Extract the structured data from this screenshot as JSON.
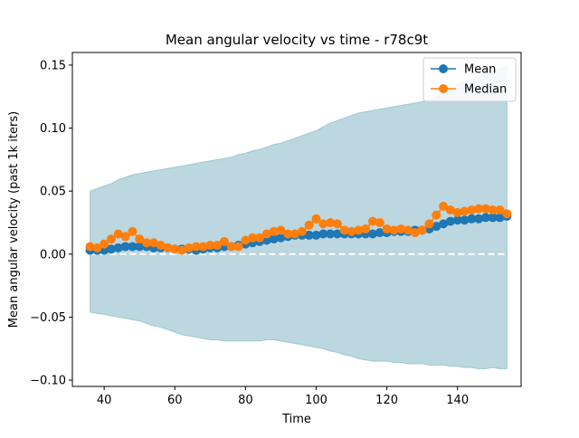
{
  "chart_data": {
    "type": "line",
    "title": "Mean angular velocity vs time - r78c9t",
    "xlabel": "Time",
    "ylabel": "Mean angular velocity (past 1k iters)",
    "xlim": [
      31,
      158
    ],
    "ylim": [
      -0.105,
      0.16
    ],
    "x_ticks": [
      40,
      60,
      80,
      100,
      120,
      140
    ],
    "y_ticks": [
      -0.1,
      -0.05,
      0.0,
      0.05,
      0.1,
      0.15
    ],
    "x_tick_labels": [
      "40",
      "60",
      "80",
      "100",
      "120",
      "140"
    ],
    "y_tick_labels": [
      "−0.10",
      "−0.05",
      "0.00",
      "0.05",
      "0.10",
      "0.15"
    ],
    "grid": false,
    "legend_position": "top-right",
    "reference_line": {
      "y": 0.0,
      "style": "dashed",
      "color": "#ffffff"
    },
    "band": {
      "color": "#7fb2c3",
      "x": [
        36,
        38,
        40,
        42,
        44,
        46,
        48,
        50,
        52,
        54,
        56,
        58,
        60,
        62,
        64,
        66,
        68,
        70,
        72,
        74,
        76,
        78,
        80,
        82,
        84,
        86,
        88,
        90,
        92,
        94,
        96,
        98,
        100,
        102,
        104,
        106,
        108,
        110,
        112,
        114,
        116,
        118,
        120,
        122,
        124,
        126,
        128,
        130,
        132,
        134,
        136,
        138,
        140,
        142,
        144,
        146,
        148,
        150,
        152,
        154
      ],
      "upper": [
        0.05,
        0.052,
        0.054,
        0.056,
        0.059,
        0.061,
        0.063,
        0.064,
        0.065,
        0.066,
        0.067,
        0.068,
        0.069,
        0.07,
        0.071,
        0.072,
        0.073,
        0.074,
        0.075,
        0.076,
        0.077,
        0.079,
        0.08,
        0.082,
        0.083,
        0.085,
        0.087,
        0.088,
        0.09,
        0.092,
        0.094,
        0.096,
        0.098,
        0.101,
        0.104,
        0.106,
        0.108,
        0.11,
        0.112,
        0.113,
        0.114,
        0.115,
        0.116,
        0.117,
        0.118,
        0.119,
        0.12,
        0.121,
        0.123,
        0.125,
        0.128,
        0.132,
        0.135,
        0.137,
        0.139,
        0.141,
        0.143,
        0.145,
        0.147,
        0.149
      ],
      "lower": [
        -0.046,
        -0.047,
        -0.048,
        -0.049,
        -0.05,
        -0.051,
        -0.052,
        -0.053,
        -0.055,
        -0.057,
        -0.058,
        -0.06,
        -0.062,
        -0.064,
        -0.065,
        -0.066,
        -0.067,
        -0.068,
        -0.068,
        -0.069,
        -0.069,
        -0.069,
        -0.069,
        -0.069,
        -0.069,
        -0.068,
        -0.068,
        -0.069,
        -0.07,
        -0.071,
        -0.072,
        -0.073,
        -0.074,
        -0.075,
        -0.077,
        -0.078,
        -0.08,
        -0.081,
        -0.083,
        -0.084,
        -0.085,
        -0.085,
        -0.085,
        -0.086,
        -0.086,
        -0.087,
        -0.087,
        -0.087,
        -0.088,
        -0.088,
        -0.088,
        -0.089,
        -0.089,
        -0.09,
        -0.09,
        -0.091,
        -0.091,
        -0.09,
        -0.091,
        -0.091
      ]
    },
    "x": [
      36,
      38,
      40,
      42,
      44,
      46,
      48,
      50,
      52,
      54,
      56,
      58,
      60,
      62,
      64,
      66,
      68,
      70,
      72,
      74,
      76,
      78,
      80,
      82,
      84,
      86,
      88,
      90,
      92,
      94,
      96,
      98,
      100,
      102,
      104,
      106,
      108,
      110,
      112,
      114,
      116,
      118,
      120,
      122,
      124,
      126,
      128,
      130,
      132,
      134,
      136,
      138,
      140,
      142,
      144,
      146,
      148,
      150,
      152,
      154
    ],
    "series": [
      {
        "name": "Mean",
        "color": "#1f77b4",
        "values": [
          0.003,
          0.003,
          0.003,
          0.004,
          0.005,
          0.006,
          0.006,
          0.006,
          0.006,
          0.005,
          0.005,
          0.005,
          0.004,
          0.004,
          0.004,
          0.003,
          0.004,
          0.005,
          0.005,
          0.006,
          0.006,
          0.007,
          0.008,
          0.009,
          0.01,
          0.011,
          0.012,
          0.013,
          0.014,
          0.015,
          0.015,
          0.015,
          0.015,
          0.016,
          0.016,
          0.016,
          0.016,
          0.016,
          0.016,
          0.016,
          0.016,
          0.017,
          0.017,
          0.018,
          0.018,
          0.018,
          0.019,
          0.019,
          0.02,
          0.022,
          0.024,
          0.026,
          0.027,
          0.027,
          0.028,
          0.028,
          0.029,
          0.029,
          0.029,
          0.03
        ]
      },
      {
        "name": "Median",
        "color": "#ff7f0e",
        "values": [
          0.006,
          0.005,
          0.008,
          0.012,
          0.016,
          0.014,
          0.018,
          0.012,
          0.009,
          0.009,
          0.007,
          0.005,
          0.004,
          0.003,
          0.005,
          0.006,
          0.006,
          0.007,
          0.007,
          0.01,
          0.006,
          0.006,
          0.011,
          0.013,
          0.013,
          0.016,
          0.018,
          0.019,
          0.016,
          0.016,
          0.018,
          0.023,
          0.028,
          0.024,
          0.025,
          0.024,
          0.019,
          0.018,
          0.019,
          0.02,
          0.026,
          0.025,
          0.02,
          0.019,
          0.02,
          0.019,
          0.017,
          0.019,
          0.024,
          0.031,
          0.038,
          0.035,
          0.033,
          0.034,
          0.035,
          0.036,
          0.036,
          0.035,
          0.035,
          0.032
        ]
      }
    ]
  }
}
